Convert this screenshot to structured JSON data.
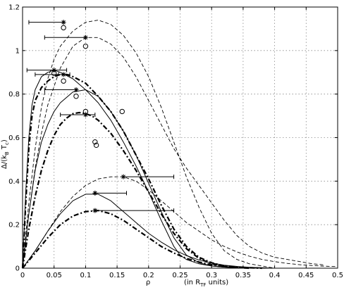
{
  "chart_data": {
    "type": "line",
    "xlabel_main": "ρ",
    "xlabel_units_prefix": "(in R",
    "xlabel_units_sub": "TF",
    "xlabel_units_suffix": " units)",
    "ylabel_parts": {
      "lead": "Δ/(k",
      "sub1": "B",
      "mid": " T",
      "sub2": "c",
      "trail": ")"
    },
    "xlim": [
      0,
      0.5
    ],
    "ylim": [
      0,
      1.2
    ],
    "grid": true,
    "x_ticks": [
      0,
      0.05,
      0.1,
      0.15,
      0.2,
      0.25,
      0.3,
      0.35,
      0.4,
      0.45,
      0.5
    ],
    "x_tick_labels": [
      "0",
      "0.05",
      "0.1",
      "0.15",
      "0.2",
      "0.25",
      "0.3",
      "0.35",
      "0.4",
      "0.45",
      "0.5"
    ],
    "y_ticks": [
      0,
      0.2,
      0.4,
      0.6,
      0.8,
      1,
      1.2
    ],
    "y_tick_labels": [
      "0",
      "0.2",
      "0.4",
      "0.6",
      "0.8",
      "1",
      "1.2"
    ],
    "series": [
      {
        "style": "dashed",
        "x": [
          0,
          0.01,
          0.02,
          0.03,
          0.04,
          0.05,
          0.06,
          0.08,
          0.1,
          0.12,
          0.14,
          0.16,
          0.18,
          0.2,
          0.22,
          0.24,
          0.26,
          0.28,
          0.3,
          0.32,
          0.34,
          0.36,
          0.38,
          0.4
        ],
        "y": [
          0,
          0.3,
          0.55,
          0.74,
          0.87,
          0.96,
          1.02,
          1.09,
          1.13,
          1.14,
          1.12,
          1.07,
          0.99,
          0.88,
          0.74,
          0.58,
          0.42,
          0.28,
          0.16,
          0.08,
          0.04,
          0.02,
          0.01,
          0
        ]
      },
      {
        "style": "dashed",
        "x": [
          0,
          0.01,
          0.02,
          0.03,
          0.04,
          0.06,
          0.08,
          0.1,
          0.12,
          0.14,
          0.16,
          0.18,
          0.2,
          0.22,
          0.24,
          0.26,
          0.28,
          0.3,
          0.32,
          0.34,
          0.36,
          0.38,
          0.4,
          0.42,
          0.44,
          0.46,
          0.48
        ],
        "y": [
          0,
          0.25,
          0.46,
          0.62,
          0.75,
          0.92,
          1.02,
          1.06,
          1.06,
          1.03,
          0.97,
          0.88,
          0.77,
          0.66,
          0.55,
          0.46,
          0.38,
          0.3,
          0.22,
          0.15,
          0.1,
          0.07,
          0.05,
          0.04,
          0.03,
          0.02,
          0.015
        ]
      },
      {
        "style": "solid",
        "x": [
          0,
          0.005,
          0.01,
          0.015,
          0.02,
          0.03,
          0.04,
          0.05,
          0.06,
          0.08,
          0.1,
          0.12,
          0.14,
          0.16,
          0.18,
          0.2,
          0.22,
          0.24,
          0.25,
          0.26,
          0.28,
          0.3,
          0.32,
          0.34,
          0.36
        ],
        "y": [
          0,
          0.35,
          0.6,
          0.75,
          0.82,
          0.88,
          0.9,
          0.91,
          0.9,
          0.87,
          0.82,
          0.76,
          0.68,
          0.58,
          0.47,
          0.35,
          0.22,
          0.1,
          0.06,
          0.04,
          0.02,
          0.01,
          0.005,
          0.002,
          0
        ]
      },
      {
        "style": "solid",
        "x": [
          0,
          0.01,
          0.02,
          0.03,
          0.04,
          0.05,
          0.06,
          0.08,
          0.1,
          0.12,
          0.14,
          0.16,
          0.18,
          0.2,
          0.22,
          0.24,
          0.26,
          0.28,
          0.3,
          0.32,
          0.34,
          0.36
        ],
        "y": [
          0,
          0.25,
          0.45,
          0.58,
          0.66,
          0.72,
          0.76,
          0.81,
          0.82,
          0.79,
          0.72,
          0.63,
          0.52,
          0.39,
          0.26,
          0.14,
          0.06,
          0.025,
          0.01,
          0.005,
          0.002,
          0
        ]
      },
      {
        "style": "dashdot",
        "x": [
          0,
          0.005,
          0.01,
          0.015,
          0.02,
          0.03,
          0.04,
          0.05,
          0.06,
          0.07,
          0.08,
          0.1,
          0.12,
          0.14,
          0.16,
          0.18,
          0.2,
          0.22,
          0.24,
          0.26,
          0.28,
          0.3,
          0.32,
          0.34,
          0.36
        ],
        "y": [
          0,
          0.3,
          0.55,
          0.7,
          0.77,
          0.83,
          0.86,
          0.88,
          0.89,
          0.89,
          0.88,
          0.85,
          0.79,
          0.72,
          0.63,
          0.52,
          0.41,
          0.29,
          0.18,
          0.1,
          0.05,
          0.025,
          0.01,
          0.005,
          0
        ]
      },
      {
        "style": "dashdot",
        "x": [
          0,
          0.01,
          0.02,
          0.03,
          0.04,
          0.05,
          0.06,
          0.07,
          0.08,
          0.09,
          0.1,
          0.11,
          0.12,
          0.14,
          0.16,
          0.18,
          0.2,
          0.22,
          0.24,
          0.26,
          0.28,
          0.3,
          0.32,
          0.34,
          0.36
        ],
        "y": [
          0,
          0.18,
          0.33,
          0.45,
          0.54,
          0.61,
          0.66,
          0.69,
          0.71,
          0.715,
          0.71,
          0.7,
          0.68,
          0.62,
          0.54,
          0.45,
          0.35,
          0.25,
          0.16,
          0.09,
          0.045,
          0.02,
          0.008,
          0.003,
          0
        ]
      },
      {
        "style": "dashed",
        "x": [
          0,
          0.02,
          0.04,
          0.06,
          0.08,
          0.1,
          0.12,
          0.14,
          0.16,
          0.18,
          0.2,
          0.22,
          0.24,
          0.26,
          0.28,
          0.3,
          0.32,
          0.34,
          0.36,
          0.38,
          0.4,
          0.42,
          0.44,
          0.46,
          0.48,
          0.5
        ],
        "y": [
          0,
          0.08,
          0.17,
          0.26,
          0.33,
          0.38,
          0.41,
          0.42,
          0.42,
          0.4,
          0.36,
          0.31,
          0.26,
          0.21,
          0.17,
          0.13,
          0.1,
          0.075,
          0.055,
          0.04,
          0.03,
          0.022,
          0.016,
          0.012,
          0.009,
          0.007
        ]
      },
      {
        "style": "solid",
        "x": [
          0,
          0.02,
          0.04,
          0.06,
          0.08,
          0.1,
          0.12,
          0.14,
          0.16,
          0.18,
          0.2,
          0.22,
          0.24,
          0.26,
          0.28,
          0.3,
          0.32,
          0.34,
          0.36,
          0.38,
          0.4
        ],
        "y": [
          0,
          0.08,
          0.17,
          0.25,
          0.31,
          0.34,
          0.34,
          0.31,
          0.26,
          0.21,
          0.16,
          0.12,
          0.085,
          0.058,
          0.038,
          0.024,
          0.014,
          0.008,
          0.004,
          0.002,
          0
        ]
      },
      {
        "style": "dashdot",
        "x": [
          0,
          0.02,
          0.04,
          0.06,
          0.08,
          0.1,
          0.12,
          0.14,
          0.16,
          0.18,
          0.2,
          0.22,
          0.24,
          0.26,
          0.28,
          0.3,
          0.32,
          0.34,
          0.36,
          0.38
        ],
        "y": [
          0,
          0.07,
          0.14,
          0.2,
          0.24,
          0.26,
          0.265,
          0.25,
          0.22,
          0.18,
          0.14,
          0.1,
          0.07,
          0.045,
          0.028,
          0.016,
          0.009,
          0.004,
          0.002,
          0
        ]
      }
    ],
    "error_bars": [
      {
        "x": 0.065,
        "y": 1.13,
        "xmin": 0.01,
        "xmax": 0.065
      },
      {
        "x": 0.1,
        "y": 1.06,
        "xmin": 0.035,
        "xmax": 0.1
      },
      {
        "x": 0.05,
        "y": 0.91,
        "xmin": 0.007,
        "xmax": 0.07
      },
      {
        "x": 0.065,
        "y": 0.89,
        "xmin": 0.02,
        "xmax": 0.075
      },
      {
        "x": 0.085,
        "y": 0.82,
        "xmin": 0.035,
        "xmax": 0.085
      },
      {
        "x": 0.1,
        "y": 0.705,
        "xmin": 0.06,
        "xmax": 0.115
      },
      {
        "x": 0.16,
        "y": 0.42,
        "xmin": 0.16,
        "xmax": 0.24
      },
      {
        "x": 0.115,
        "y": 0.345,
        "xmin": 0.115,
        "xmax": 0.165
      },
      {
        "x": 0.115,
        "y": 0.265,
        "xmin": 0.115,
        "xmax": 0.24
      }
    ],
    "circles": [
      {
        "x": 0.065,
        "y": 1.105
      },
      {
        "x": 0.1,
        "y": 1.02
      },
      {
        "x": 0.05,
        "y": 0.895
      },
      {
        "x": 0.065,
        "y": 0.86
      },
      {
        "x": 0.085,
        "y": 0.79
      },
      {
        "x": 0.1,
        "y": 0.72
      },
      {
        "x": 0.158,
        "y": 0.72
      },
      {
        "x": 0.115,
        "y": 0.58
      },
      {
        "x": 0.117,
        "y": 0.565
      }
    ]
  }
}
